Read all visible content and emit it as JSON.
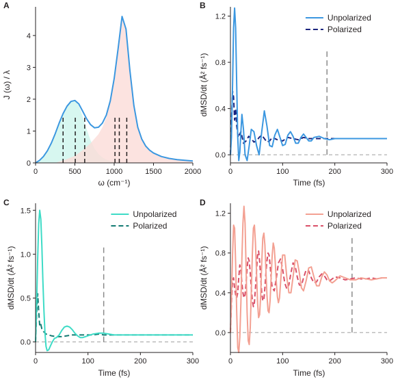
{
  "chart_data": [
    {
      "panel": "A",
      "type": "area",
      "xlabel": "ω (cm⁻¹)",
      "ylabel": "J (ω) / λ",
      "xlim": [
        0,
        2000
      ],
      "ylim": [
        0,
        4.9
      ],
      "xticks": [
        0,
        500,
        1000,
        1500,
        2000
      ],
      "yticks": [
        0,
        1,
        2,
        3,
        4
      ],
      "series": [
        {
          "role": "total",
          "color": "#3b97e0",
          "x": [
            0,
            50,
            100,
            150,
            200,
            250,
            300,
            350,
            400,
            450,
            500,
            550,
            600,
            650,
            700,
            750,
            800,
            850,
            900,
            950,
            1000,
            1050,
            1100,
            1150,
            1200,
            1250,
            1300,
            1350,
            1400,
            1450,
            1500,
            1600,
            1700,
            1800,
            1900,
            2000
          ],
          "y": [
            0.0,
            0.08,
            0.2,
            0.38,
            0.62,
            0.92,
            1.25,
            1.55,
            1.78,
            1.93,
            1.96,
            1.85,
            1.62,
            1.38,
            1.2,
            1.1,
            1.12,
            1.25,
            1.5,
            1.95,
            2.65,
            3.6,
            4.6,
            4.2,
            2.9,
            1.8,
            1.12,
            0.75,
            0.53,
            0.4,
            0.31,
            0.2,
            0.14,
            0.1,
            0.08,
            0.06
          ]
        },
        {
          "role": "low-frequency band",
          "color": "#cdf5ec",
          "x": [
            0,
            50,
            100,
            150,
            200,
            250,
            300,
            350,
            400,
            450,
            500,
            550,
            600,
            650,
            700,
            750,
            800,
            850,
            900,
            950,
            1000,
            1050,
            1100
          ],
          "y": [
            0.0,
            0.08,
            0.2,
            0.38,
            0.62,
            0.92,
            1.25,
            1.55,
            1.78,
            1.93,
            1.96,
            1.8,
            1.45,
            1.05,
            0.7,
            0.45,
            0.28,
            0.17,
            0.1,
            0.06,
            0.04,
            0.02,
            0.0
          ]
        },
        {
          "role": "high-frequency band",
          "color": "#fbdcd8",
          "x": [
            250,
            300,
            400,
            500,
            600,
            700,
            800,
            850,
            900,
            950,
            1000,
            1050,
            1100,
            1150,
            1200,
            1250,
            1300,
            1350,
            1400,
            1450,
            1500,
            1600,
            1700,
            1800,
            1900,
            2000
          ],
          "y": [
            0.0,
            0.04,
            0.12,
            0.22,
            0.4,
            0.62,
            0.9,
            1.12,
            1.42,
            1.9,
            2.62,
            3.58,
            4.6,
            4.2,
            2.9,
            1.8,
            1.12,
            0.75,
            0.53,
            0.4,
            0.31,
            0.2,
            0.14,
            0.1,
            0.08,
            0.06
          ]
        }
      ],
      "vlines": {
        "x": [
          350,
          505,
          625,
          1010,
          1065,
          1160
        ],
        "y_range": [
          0,
          1.45
        ],
        "style": "dashed",
        "color": "#231f20"
      }
    },
    {
      "panel": "B",
      "type": "line",
      "xlabel": "Time (fs)",
      "ylabel": "dMSD/dt (Å² fs⁻¹)",
      "xlim": [
        0,
        300
      ],
      "ylim": [
        -0.07,
        1.28
      ],
      "xticks": [
        0,
        100,
        200,
        300
      ],
      "yticks": [
        0.0,
        0.4,
        0.8,
        1.2
      ],
      "legend_position": "top-right",
      "series": [
        {
          "name": "Unpolarized",
          "color": "#3b97e0",
          "dash": "solid",
          "x": [
            0,
            2,
            4,
            6,
            8,
            10,
            12,
            14,
            16,
            18,
            20,
            22,
            25,
            28,
            32,
            36,
            40,
            45,
            50,
            55,
            60,
            65,
            70,
            75,
            80,
            85,
            90,
            95,
            100,
            105,
            110,
            115,
            120,
            125,
            130,
            135,
            140,
            145,
            150,
            155,
            160,
            170,
            180,
            190,
            200,
            210,
            220,
            230,
            240,
            250,
            260,
            270,
            280,
            290,
            300
          ],
          "y": [
            0.0,
            0.15,
            0.6,
            1.1,
            1.27,
            1.1,
            0.6,
            0.15,
            -0.05,
            0.02,
            0.2,
            0.35,
            0.22,
            0.0,
            -0.05,
            0.08,
            0.22,
            0.2,
            0.08,
            0.0,
            0.2,
            0.38,
            0.25,
            0.08,
            0.07,
            0.17,
            0.22,
            0.15,
            0.08,
            0.09,
            0.17,
            0.2,
            0.16,
            0.1,
            0.1,
            0.15,
            0.18,
            0.15,
            0.12,
            0.12,
            0.15,
            0.16,
            0.14,
            0.13,
            0.14,
            0.14,
            0.14,
            0.14,
            0.14,
            0.14,
            0.14,
            0.14,
            0.14,
            0.14,
            0.14
          ]
        },
        {
          "name": "Polarized",
          "color": "#1a237e",
          "dash": "dashed",
          "x": [
            0,
            2,
            4,
            6,
            8,
            10,
            12,
            15,
            20,
            25,
            30,
            35,
            40,
            45,
            50,
            55,
            60,
            65,
            70,
            75,
            80,
            90,
            100,
            110,
            120,
            130,
            140,
            150,
            160,
            170,
            180,
            190,
            200,
            220,
            240,
            260,
            280,
            300
          ],
          "y": [
            0.0,
            0.3,
            0.55,
            0.5,
            0.3,
            0.4,
            0.25,
            0.15,
            0.2,
            0.1,
            0.12,
            0.16,
            0.14,
            0.11,
            0.12,
            0.15,
            0.17,
            0.14,
            0.11,
            0.12,
            0.15,
            0.13,
            0.12,
            0.15,
            0.14,
            0.13,
            0.15,
            0.14,
            0.14,
            0.14,
            0.14,
            0.14,
            0.14,
            0.14,
            0.14,
            0.14,
            0.14,
            0.14
          ]
        }
      ],
      "zero_line": 0.0,
      "vline": {
        "x": 185,
        "y_range": [
          0.0,
          0.92
        ]
      }
    },
    {
      "panel": "C",
      "type": "line",
      "xlabel": "Time (fs)",
      "ylabel": "dMSD/dt (Å² fs⁻¹)",
      "xlim": [
        0,
        300
      ],
      "ylim": [
        -0.12,
        1.58
      ],
      "xticks": [
        0,
        100,
        200,
        300
      ],
      "yticks": [
        0.0,
        0.5,
        1.0,
        1.5
      ],
      "legend_position": "top-right",
      "series": [
        {
          "name": "Unpolarized",
          "color": "#3ddbc6",
          "dash": "solid",
          "x": [
            0,
            2,
            4,
            6,
            8,
            10,
            12,
            14,
            16,
            18,
            20,
            22,
            25,
            28,
            32,
            36,
            40,
            45,
            50,
            55,
            60,
            65,
            70,
            75,
            80,
            85,
            90,
            95,
            100,
            110,
            120,
            130,
            140,
            150,
            160,
            180,
            200,
            220,
            240,
            260,
            280,
            300
          ],
          "y": [
            0.0,
            0.4,
            0.95,
            1.35,
            1.5,
            1.4,
            1.1,
            0.7,
            0.35,
            0.1,
            -0.05,
            -0.1,
            -0.09,
            -0.05,
            0.0,
            0.04,
            0.05,
            0.08,
            0.13,
            0.17,
            0.18,
            0.17,
            0.14,
            0.1,
            0.07,
            0.05,
            0.05,
            0.06,
            0.07,
            0.09,
            0.1,
            0.1,
            0.09,
            0.08,
            0.08,
            0.08,
            0.08,
            0.08,
            0.08,
            0.08,
            0.08,
            0.08
          ]
        },
        {
          "name": "Polarized",
          "color": "#127a72",
          "dash": "dashed",
          "x": [
            0,
            2,
            4,
            6,
            8,
            10,
            12,
            15,
            20,
            25,
            30,
            40,
            50,
            60,
            70,
            80,
            90,
            100,
            110,
            120,
            130,
            140,
            150,
            160,
            180,
            200,
            220,
            240,
            260,
            280,
            300
          ],
          "y": [
            0.0,
            0.3,
            0.55,
            0.35,
            0.18,
            0.2,
            0.15,
            0.12,
            0.09,
            0.08,
            0.07,
            0.06,
            0.06,
            0.07,
            0.08,
            0.08,
            0.08,
            0.08,
            0.08,
            0.09,
            0.08,
            0.08,
            0.08,
            0.08,
            0.08,
            0.08,
            0.08,
            0.08,
            0.08,
            0.08,
            0.08
          ]
        }
      ],
      "zero_line": 0.0,
      "vline": {
        "x": 130,
        "y_range": [
          0.0,
          1.1
        ]
      }
    },
    {
      "panel": "D",
      "type": "line",
      "xlabel": "Time (fs)",
      "ylabel": "dMSD/dt (Å² fs⁻¹)",
      "xlim": [
        0,
        300
      ],
      "ylim": [
        -0.2,
        1.3
      ],
      "xticks": [
        0,
        100,
        200,
        300
      ],
      "yticks": [
        0.0,
        0.4,
        0.8,
        1.2
      ],
      "legend_position": "top-right",
      "series": [
        {
          "name": "Unpolarized",
          "color": "#f3a092",
          "dash": "solid",
          "x": [
            0,
            2,
            4,
            6,
            8,
            10,
            12,
            14,
            16,
            18,
            20,
            22,
            24,
            26,
            28,
            30,
            32,
            34,
            36,
            38,
            40,
            42,
            44,
            46,
            48,
            50,
            52,
            54,
            56,
            58,
            60,
            62,
            64,
            66,
            68,
            70,
            72,
            74,
            76,
            78,
            80,
            82,
            84,
            86,
            88,
            90,
            92,
            94,
            96,
            98,
            100,
            104,
            108,
            112,
            116,
            120,
            124,
            128,
            132,
            136,
            140,
            145,
            150,
            155,
            160,
            165,
            170,
            175,
            180,
            185,
            190,
            195,
            200,
            210,
            220,
            230,
            240,
            250,
            260,
            270,
            280,
            290,
            300
          ],
          "y": [
            0.0,
            0.35,
            0.78,
            1.08,
            1.05,
            0.7,
            0.2,
            -0.15,
            -0.2,
            -0.05,
            0.3,
            0.75,
            1.1,
            1.27,
            1.1,
            0.65,
            0.2,
            -0.08,
            -0.12,
            0.05,
            0.4,
            0.8,
            1.05,
            1.08,
            0.9,
            0.6,
            0.3,
            0.15,
            0.18,
            0.38,
            0.7,
            0.95,
            1.0,
            0.88,
            0.62,
            0.38,
            0.22,
            0.2,
            0.32,
            0.55,
            0.78,
            0.9,
            0.85,
            0.7,
            0.5,
            0.36,
            0.3,
            0.35,
            0.5,
            0.65,
            0.78,
            0.78,
            0.56,
            0.4,
            0.4,
            0.56,
            0.73,
            0.72,
            0.6,
            0.45,
            0.42,
            0.52,
            0.65,
            0.66,
            0.56,
            0.47,
            0.47,
            0.56,
            0.61,
            0.58,
            0.52,
            0.5,
            0.52,
            0.57,
            0.55,
            0.53,
            0.53,
            0.55,
            0.54,
            0.53,
            0.54,
            0.55,
            0.55
          ]
        },
        {
          "name": "Polarized",
          "color": "#d94f68",
          "dash": "dashed",
          "x": [
            0,
            2,
            4,
            6,
            8,
            10,
            12,
            14,
            16,
            18,
            20,
            22,
            24,
            26,
            28,
            30,
            32,
            34,
            36,
            38,
            40,
            42,
            44,
            46,
            48,
            50,
            52,
            54,
            56,
            58,
            60,
            62,
            64,
            66,
            68,
            70,
            72,
            74,
            76,
            78,
            80,
            84,
            88,
            92,
            96,
            100,
            104,
            108,
            112,
            116,
            120,
            124,
            128,
            132,
            136,
            140,
            145,
            150,
            155,
            160,
            165,
            170,
            175,
            180,
            185,
            190,
            195,
            200,
            210,
            220,
            230,
            240,
            250,
            260,
            270,
            280,
            290,
            300
          ],
          "y": [
            0.0,
            0.3,
            0.52,
            0.55,
            0.45,
            0.38,
            0.35,
            0.4,
            0.55,
            0.68,
            0.62,
            0.5,
            0.4,
            0.35,
            0.38,
            0.5,
            0.65,
            0.75,
            0.72,
            0.6,
            0.45,
            0.32,
            0.26,
            0.3,
            0.45,
            0.62,
            0.78,
            0.82,
            0.72,
            0.55,
            0.4,
            0.32,
            0.33,
            0.45,
            0.6,
            0.72,
            0.8,
            0.78,
            0.68,
            0.55,
            0.45,
            0.42,
            0.55,
            0.7,
            0.74,
            0.64,
            0.5,
            0.44,
            0.48,
            0.6,
            0.7,
            0.67,
            0.56,
            0.48,
            0.47,
            0.55,
            0.63,
            0.62,
            0.55,
            0.5,
            0.51,
            0.56,
            0.59,
            0.57,
            0.53,
            0.52,
            0.54,
            0.56,
            0.55,
            0.53,
            0.54,
            0.55,
            0.54,
            0.54,
            0.55,
            0.54,
            0.55,
            0.55
          ]
        }
      ],
      "zero_line": 0.0,
      "vline": {
        "x": 233,
        "y_range": [
          0.0,
          0.95
        ]
      }
    }
  ]
}
